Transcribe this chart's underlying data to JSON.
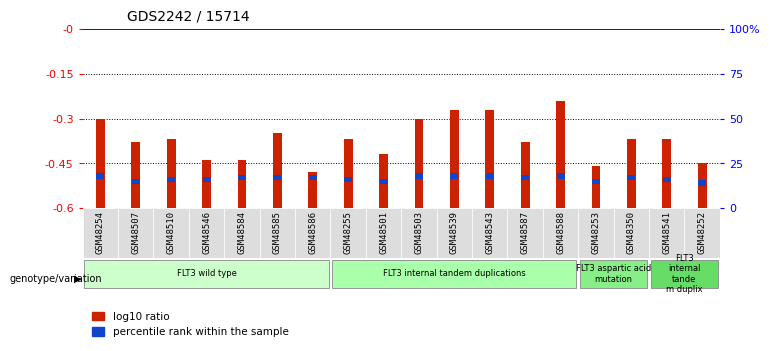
{
  "title": "GDS2242 / 15714",
  "samples": [
    "GSM48254",
    "GSM48507",
    "GSM48510",
    "GSM48546",
    "GSM48584",
    "GSM48585",
    "GSM48586",
    "GSM48255",
    "GSM48501",
    "GSM48503",
    "GSM48539",
    "GSM48543",
    "GSM48587",
    "GSM48588",
    "GSM48253",
    "GSM48350",
    "GSM48541",
    "GSM48252"
  ],
  "log10_ratio": [
    -0.3,
    -0.38,
    -0.37,
    -0.44,
    -0.44,
    -0.35,
    -0.48,
    -0.37,
    -0.42,
    -0.3,
    -0.27,
    -0.27,
    -0.38,
    -0.24,
    -0.46,
    -0.37,
    -0.37,
    -0.45
  ],
  "percentile_rank": [
    18,
    15,
    16,
    16,
    17,
    17,
    17,
    16,
    15,
    18,
    18,
    18,
    17,
    18,
    15,
    17,
    16,
    14
  ],
  "bar_bottom": -0.6,
  "red_color": "#CC2200",
  "blue_color": "#1144CC",
  "groups": [
    {
      "label": "FLT3 wild type",
      "start": 0,
      "end": 7,
      "color": "#CCFFCC"
    },
    {
      "label": "FLT3 internal tandem duplications",
      "start": 7,
      "end": 14,
      "color": "#AAFFAA"
    },
    {
      "label": "FLT3 aspartic acid\nmutation",
      "start": 14,
      "end": 16,
      "color": "#88EE88"
    },
    {
      "label": "FLT3\ninternal\ntande\nm duplix",
      "start": 16,
      "end": 18,
      "color": "#66DD66"
    }
  ],
  "ylim_left": [
    -0.6,
    0.0
  ],
  "ylim_right": [
    0,
    100
  ],
  "yticks_left": [
    -0.6,
    -0.45,
    -0.3,
    -0.15,
    0.0
  ],
  "yticks_right": [
    0,
    25,
    50,
    75,
    100
  ],
  "ytick_labels_left": [
    "-0.6",
    "-0.45",
    "-0.3",
    "-0.15",
    "-0"
  ],
  "ytick_labels_right": [
    "0",
    "25",
    "50",
    "75",
    "100%"
  ],
  "bg_color": "#FFFFFF",
  "plot_bg_color": "#FFFFFF",
  "xtick_bg_color": "#DDDDDD",
  "legend_log10": "log10 ratio",
  "legend_pct": "percentile rank within the sample"
}
